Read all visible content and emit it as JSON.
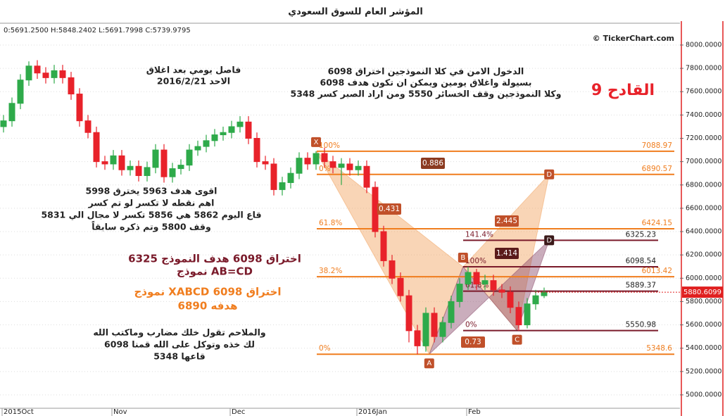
{
  "chart_data": {
    "type": "candlestick",
    "title": "المؤشر العام للسوق السعودي",
    "ohlc_header": "0:5691.2500 H:5848.2402 L:5691.7998 C:5739.9795",
    "copyright": "© TickerChart.com",
    "last_price": 5880.6099,
    "ylim": [
      4885,
      8187
    ],
    "yticks": [
      {
        "value": 5000,
        "label": "5000.0000"
      },
      {
        "value": 5200,
        "label": "5200.0000"
      },
      {
        "value": 5400,
        "label": "5400.0000"
      },
      {
        "value": 5600,
        "label": "5600.0000"
      },
      {
        "value": 5800,
        "label": "5800.0000"
      },
      {
        "value": 6000,
        "label": "6000.0000"
      },
      {
        "value": 6200,
        "label": "6200.0000"
      },
      {
        "value": 6400,
        "label": "6400.0000"
      },
      {
        "value": 6600,
        "label": "6600.0000"
      },
      {
        "value": 6800,
        "label": "6800.0000"
      },
      {
        "value": 7000,
        "label": "7000.0000"
      },
      {
        "value": 7200,
        "label": "7200.0000"
      },
      {
        "value": 7400,
        "label": "7400.0000"
      },
      {
        "value": 7600,
        "label": "7600.0000"
      },
      {
        "value": 7800,
        "label": "7800.0000"
      },
      {
        "value": 8000,
        "label": "8000.0000"
      }
    ],
    "grid": true,
    "up_color": "#2eaa4a",
    "down_color": "#e8222a",
    "categories": [
      "2015Oct",
      null,
      null,
      null,
      null,
      null,
      null,
      null,
      null,
      null,
      null,
      null,
      null,
      "Nov",
      null,
      null,
      null,
      null,
      null,
      null,
      null,
      null,
      null,
      null,
      null,
      null,
      null,
      "Dec",
      null,
      null,
      null,
      null,
      null,
      null,
      null,
      null,
      null,
      null,
      null,
      null,
      null,
      null,
      "2016Jan",
      null,
      null,
      null,
      null,
      null,
      null,
      null,
      null,
      null,
      null,
      null,
      null,
      "Feb",
      null,
      null,
      null,
      null,
      null,
      null,
      null,
      null,
      null
    ],
    "open": [
      7300,
      7350,
      7500,
      7700,
      7820,
      7760,
      7720,
      7780,
      7720,
      7580,
      7350,
      7250,
      7000,
      6980,
      7050,
      6930,
      6960,
      6880,
      6950,
      7100,
      6870,
      6940,
      6970,
      7100,
      7130,
      7180,
      7230,
      7250,
      7300,
      7340,
      7200,
      7000,
      6980,
      6760,
      6820,
      6900,
      7030,
      6980,
      7070,
      7000,
      6950,
      6980,
      6930,
      6960,
      6780,
      6400,
      6150,
      6000,
      5850,
      5550,
      5420,
      5700,
      5500,
      5620,
      5800,
      5950,
      6050,
      5950,
      5980,
      5900,
      5880,
      5750,
      5600,
      5780,
      5850
    ],
    "high": [
      7400,
      7550,
      7750,
      7860,
      7870,
      7810,
      7830,
      7830,
      7770,
      7630,
      7400,
      7300,
      7050,
      7100,
      7100,
      7010,
      7010,
      7000,
      7150,
      7150,
      6990,
      7020,
      7150,
      7180,
      7230,
      7280,
      7300,
      7350,
      7390,
      7390,
      7250,
      7050,
      7030,
      6870,
      6950,
      7080,
      7080,
      7090,
      7120,
      7050,
      7030,
      7030,
      7010,
      7010,
      6830,
      6450,
      6200,
      6050,
      5900,
      5600,
      5750,
      5750,
      5670,
      5850,
      6000,
      6098,
      6080,
      6030,
      6030,
      5950,
      5930,
      5800,
      5830,
      5900,
      5920
    ],
    "low": [
      7250,
      7300,
      7450,
      7650,
      7710,
      7670,
      7670,
      7670,
      7530,
      7300,
      7200,
      6950,
      6930,
      6930,
      6880,
      6880,
      6830,
      6830,
      6900,
      6820,
      6820,
      6890,
      6920,
      7050,
      7080,
      7130,
      7180,
      7200,
      7250,
      7150,
      6950,
      6930,
      6710,
      6710,
      6770,
      6850,
      6930,
      6930,
      6950,
      6900,
      6800,
      6880,
      6880,
      6730,
      6350,
      6100,
      5950,
      5800,
      5450,
      5348,
      5370,
      5450,
      5450,
      5570,
      5750,
      5900,
      5900,
      5900,
      5850,
      5830,
      5700,
      5550,
      5570,
      5730,
      5830
    ],
    "close": [
      7350,
      7500,
      7700,
      7820,
      7760,
      7720,
      7780,
      7720,
      7580,
      7350,
      7250,
      7000,
      6980,
      7050,
      6930,
      6960,
      6880,
      6950,
      7100,
      6870,
      6940,
      6970,
      7100,
      7130,
      7180,
      7230,
      7250,
      7300,
      7340,
      7200,
      7000,
      6980,
      6760,
      6820,
      6900,
      7030,
      6980,
      7070,
      7000,
      6950,
      6980,
      6930,
      6960,
      6780,
      6400,
      6150,
      6000,
      5850,
      5550,
      5420,
      5700,
      5500,
      5620,
      5800,
      5950,
      6050,
      5950,
      5980,
      5900,
      5880,
      5750,
      5600,
      5780,
      5850,
      5880
    ],
    "levels": [
      {
        "value": 7088.97,
        "label": "100%",
        "color": "#f07d1e"
      },
      {
        "value": 6890.57,
        "label": "0%",
        "color": "#f07d1e"
      },
      {
        "value": 6424.15,
        "label": "61.8%",
        "color": "#f07d1e"
      },
      {
        "value": 6013.42,
        "label": "38.2%",
        "color": "#f07d1e"
      },
      {
        "value": 5348.6,
        "label": "0%",
        "color": "#f07d1e"
      },
      {
        "value": 6325.23,
        "label": "141.4%",
        "color": "#7a1a2a"
      },
      {
        "value": 6098.54,
        "label": "100%",
        "color": "#7a1a2a"
      },
      {
        "value": 5889.37,
        "label": "61.8%",
        "color": "#7a1a2a"
      },
      {
        "value": 5550.98,
        "label": "0%",
        "color": "#7a1a2a"
      }
    ],
    "points": [
      {
        "label": "X",
        "x": 37,
        "y": 7088.97
      },
      {
        "label": "A",
        "x": 50.4,
        "y": 5348.6
      },
      {
        "label": "B",
        "x": 54.4,
        "y": 6098.54
      },
      {
        "label": "C",
        "x": 60.8,
        "y": 5550.98
      },
      {
        "label": "D",
        "x": 64.6,
        "y": 6890.57
      },
      {
        "label": "D",
        "x": 64.6,
        "y": 6325.23
      }
    ],
    "ratios": [
      0.886,
      0.431,
      2.445,
      1.414,
      0.73
    ],
    "notes": {
      "daily": [
        "فاصل يومي بعد اغلاق",
        "الاحد 2016/2/21"
      ],
      "entry": [
        "الدخول الامن في كلا النموذجين اختراق 6098",
        "بسيولة واغلاق يومين ويمكن ان تكون هدف 6098",
        "وكلا النموذجين وقف الخسائر 5550 ومن اراد الصبر كسر 5348"
      ],
      "headline": "القادح 9",
      "targets": [
        "اقوى هدف 5963 يخترق 5998",
        "اهم نقطه لا تكسر لو تم كسر",
        "قاع اليوم 5862 هي 5856 تكسر لا مجال الي 5831",
        "وقف 5800 وتم ذكره سابقاً"
      ],
      "abcd": [
        "اختراق 6098 هدف النموذج 6325",
        "نموذج AB=CD"
      ],
      "xabcd": [
        "نموذج XABCD اختراق 6098",
        "هدفه 6890"
      ],
      "closing": [
        "والملاحم تقول خلك مضارب وماكتب الله",
        "لك خذه وتوكل على الله قمنا 6098",
        "قاعها 5348"
      ]
    }
  }
}
